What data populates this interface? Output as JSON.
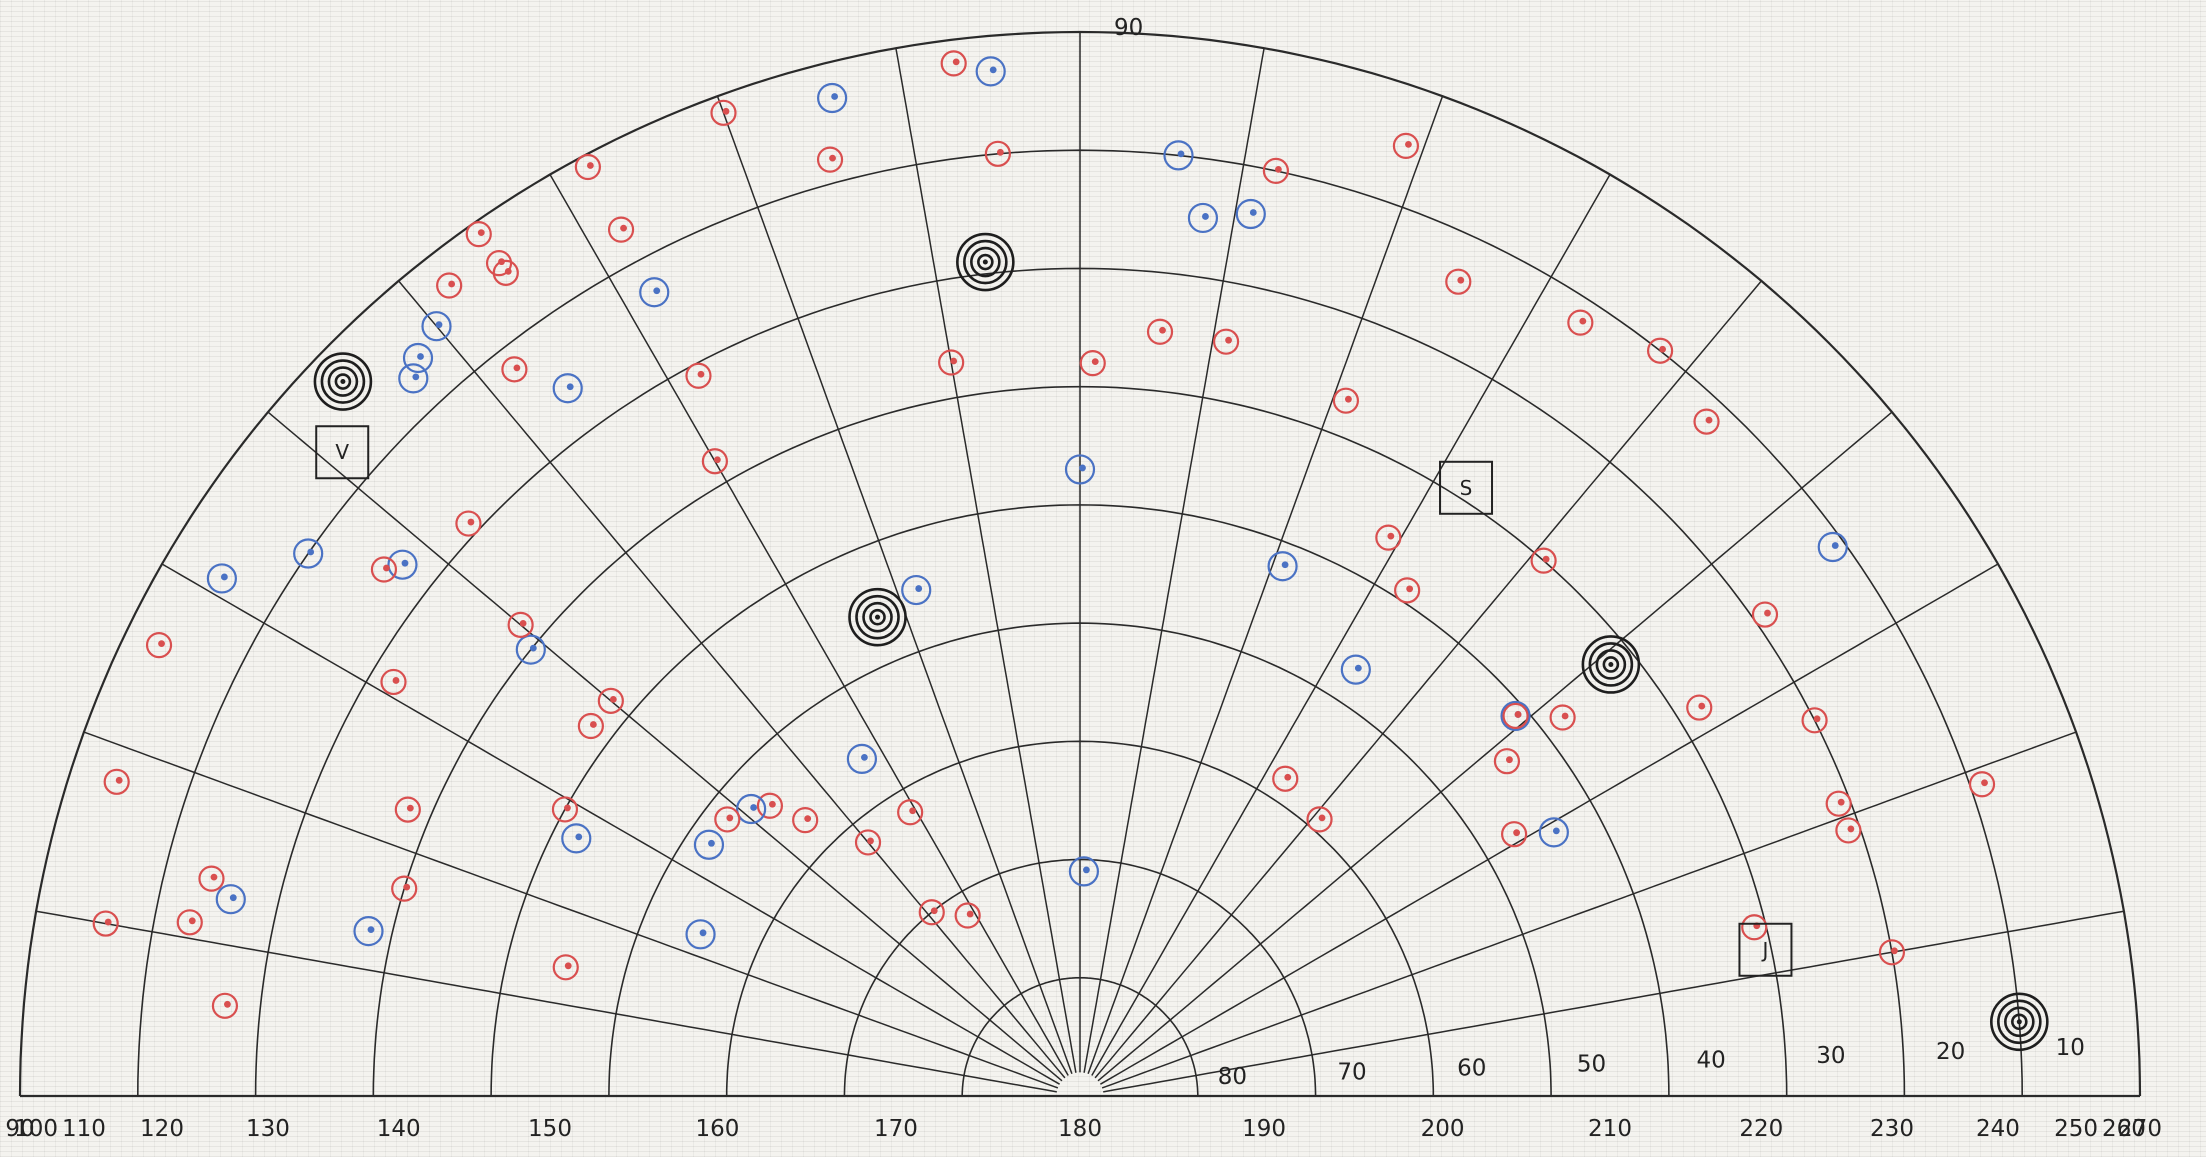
{
  "colors": {
    "grid": "#2a2a2a",
    "red_marker": "#d94f4f",
    "blue_marker": "#4a72c4",
    "target_marker": "#1e1e1e",
    "box": "#222222"
  },
  "azimuth_labels": [
    "90",
    "100",
    "110",
    "120",
    "130",
    "140",
    "150",
    "160",
    "170",
    "180",
    "190",
    "200",
    "210",
    "220",
    "230",
    "240",
    "250",
    "260",
    "270"
  ],
  "altitude_labels": [
    "90",
    "80",
    "70",
    "60",
    "50",
    "40",
    "30",
    "20",
    "10"
  ],
  "boxes": [
    {
      "label": "S",
      "az": 212.5,
      "alt": 29
    },
    {
      "label": "V",
      "az": 131,
      "alt": 7
    },
    {
      "label": "J",
      "az": 258,
      "alt": 30.5
    }
  ],
  "targets": [
    {
      "az": 157,
      "alt": 46,
      "rings": 3
    },
    {
      "az": 231,
      "alt": 32,
      "rings": 3
    },
    {
      "az": 173.5,
      "alt": 19,
      "rings": 3
    },
    {
      "az": 265.5,
      "alt": 10,
      "rings": 3
    },
    {
      "az": 134,
      "alt": 3,
      "rings": 3
    }
  ],
  "markers": [
    {
      "az": 141,
      "alt": 70,
      "c": "red"
    },
    {
      "az": 148,
      "alt": 72,
      "c": "red"
    },
    {
      "az": 181,
      "alt": 71,
      "c": "blue"
    },
    {
      "az": 140,
      "alt": 62,
      "c": "red"
    },
    {
      "az": 149,
      "alt": 62,
      "c": "red"
    },
    {
      "az": 113,
      "alt": 55,
      "c": "blue"
    },
    {
      "az": 135,
      "alt": 57,
      "c": "red"
    },
    {
      "az": 133,
      "alt": 54,
      "c": "red"
    },
    {
      "az": 131,
      "alt": 53,
      "c": "blue"
    },
    {
      "az": 128,
      "alt": 52,
      "c": "red"
    },
    {
      "az": 124,
      "alt": 52,
      "c": "blue"
    },
    {
      "az": 147,
      "alt": 56,
      "c": "blue"
    },
    {
      "az": 104,
      "alt": 45,
      "c": "red"
    },
    {
      "az": 117,
      "alt": 42,
      "c": "blue"
    },
    {
      "az": 119,
      "alt": 40,
      "c": "red"
    },
    {
      "az": 127,
      "alt": 38,
      "c": "red"
    },
    {
      "az": 130,
      "alt": 38,
      "c": "red"
    },
    {
      "az": 162,
      "alt": 45,
      "c": "blue"
    },
    {
      "az": 180,
      "alt": 37,
      "c": "blue"
    },
    {
      "az": 201,
      "alt": 42,
      "c": "blue"
    },
    {
      "az": 213,
      "alt": 47,
      "c": "blue"
    },
    {
      "az": 213,
      "alt": 58,
      "c": "red"
    },
    {
      "az": 221,
      "alt": 59,
      "c": "red"
    },
    {
      "az": 232,
      "alt": 44,
      "c": "red"
    },
    {
      "az": 229,
      "alt": 41,
      "c": "blue"
    },
    {
      "az": 229,
      "alt": 41,
      "c": "red"
    },
    {
      "az": 213,
      "alt": 39,
      "c": "red"
    },
    {
      "az": 209,
      "alt": 36,
      "c": "red"
    },
    {
      "az": 232,
      "alt": 38,
      "c": "red"
    },
    {
      "az": 239,
      "alt": 47,
      "c": "red"
    },
    {
      "az": 241,
      "alt": 44,
      "c": "blue"
    },
    {
      "az": 221,
      "alt": 30,
      "c": "red"
    },
    {
      "az": 238,
      "alt": 28,
      "c": "red"
    },
    {
      "az": 256,
      "alt": 31,
      "c": "red"
    },
    {
      "az": 107,
      "alt": 30,
      "c": "red"
    },
    {
      "az": 103,
      "alt": 28,
      "c": "blue"
    },
    {
      "az": 113,
      "alt": 28,
      "c": "red"
    },
    {
      "az": 129,
      "alt": 30,
      "c": "blue"
    },
    {
      "az": 130,
      "alt": 28,
      "c": "red"
    },
    {
      "az": 150,
      "alt": 28,
      "c": "red"
    },
    {
      "az": 170,
      "alt": 27,
      "c": "red"
    },
    {
      "az": 181,
      "alt": 28,
      "c": "red"
    },
    {
      "az": 186,
      "alt": 25,
      "c": "red"
    },
    {
      "az": 191,
      "alt": 25,
      "c": "red"
    },
    {
      "az": 201,
      "alt": 27,
      "c": "red"
    },
    {
      "az": 96,
      "alt": 17,
      "c": "red"
    },
    {
      "az": 121,
      "alt": 22,
      "c": "red"
    },
    {
      "az": 133,
      "alt": 19,
      "c": "red"
    },
    {
      "az": 152,
      "alt": 21,
      "c": "red"
    },
    {
      "az": 103,
      "alt": 16,
      "c": "blue"
    },
    {
      "az": 104,
      "alt": 14,
      "c": "red"
    },
    {
      "az": 101,
      "alt": 13,
      "c": "red"
    },
    {
      "az": 128,
      "alt": 17,
      "c": "blue"
    },
    {
      "az": 127,
      "alt": 16,
      "c": "red"
    },
    {
      "az": 144,
      "alt": 16,
      "c": "blue"
    },
    {
      "az": 235,
      "alt": 19,
      "c": "red"
    },
    {
      "az": 243,
      "alt": 20,
      "c": "red"
    },
    {
      "az": 249,
      "alt": 21,
      "c": "red"
    },
    {
      "az": 251,
      "alt": 21,
      "c": "red"
    },
    {
      "az": 260,
      "alt": 20,
      "c": "red"
    },
    {
      "az": 125,
      "alt": 10,
      "c": "blue"
    },
    {
      "az": 142,
      "alt": 12,
      "c": "red"
    },
    {
      "az": 152,
      "alt": 13,
      "c": "blue"
    },
    {
      "az": 188,
      "alt": 15,
      "c": "blue"
    },
    {
      "az": 191,
      "alt": 14,
      "c": "blue"
    },
    {
      "az": 205,
      "alt": 14,
      "c": "red"
    },
    {
      "az": 213,
      "alt": 12,
      "c": "red"
    },
    {
      "az": 223,
      "alt": 12,
      "c": "red"
    },
    {
      "az": 234,
      "alt": 11,
      "c": "blue"
    },
    {
      "az": 175,
      "alt": 10,
      "c": "red"
    },
    {
      "az": 186,
      "alt": 10,
      "c": "blue"
    },
    {
      "az": 192,
      "alt": 10,
      "c": "red"
    },
    {
      "az": 218,
      "alt": 10,
      "c": "red"
    },
    {
      "az": 251,
      "alt": 9,
      "c": "red"
    },
    {
      "az": 100,
      "alt": 6,
      "c": "red"
    },
    {
      "az": 108,
      "alt": 4,
      "c": "red"
    },
    {
      "az": 116,
      "alt": 3,
      "c": "red"
    },
    {
      "az": 121,
      "alt": 5,
      "c": "blue"
    },
    {
      "az": 137,
      "alt": 7,
      "c": "blue"
    },
    {
      "az": 138,
      "alt": 6,
      "c": "blue"
    },
    {
      "az": 140,
      "alt": 5,
      "c": "blue"
    },
    {
      "az": 152,
      "alt": 7,
      "c": "red"
    },
    {
      "az": 165,
      "alt": 8,
      "c": "red"
    },
    {
      "az": 166,
      "alt": 3,
      "c": "blue"
    },
    {
      "az": 175,
      "alt": 3,
      "c": "blue"
    },
    {
      "az": 145,
      "alt": 5,
      "c": "red"
    },
    {
      "az": 145,
      "alt": 4,
      "c": "red"
    },
    {
      "az": 142,
      "alt": 3,
      "c": "red"
    },
    {
      "az": 145,
      "alt": 1,
      "c": "red"
    },
    {
      "az": 152,
      "alt": 1,
      "c": "red"
    },
    {
      "az": 160,
      "alt": 1.5,
      "c": "red"
    },
    {
      "az": 173,
      "alt": 2,
      "c": "red"
    },
    {
      "az": 199,
      "alt": 5,
      "c": "red"
    }
  ]
}
